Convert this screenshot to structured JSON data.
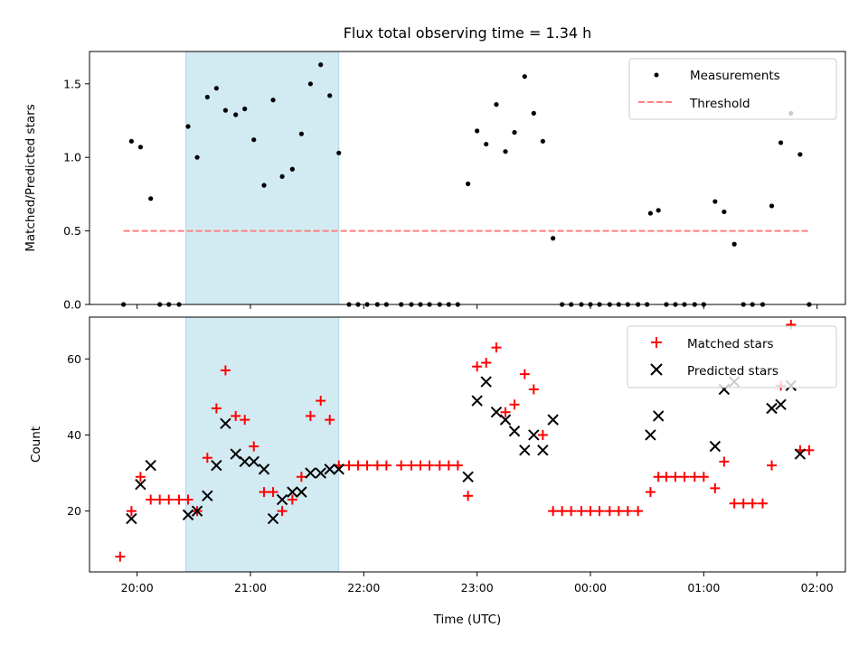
{
  "title": "Flux total observing time = 1.34 h",
  "colors": {
    "measurement": "#000000",
    "threshold": "#ff7f7f",
    "matched": "#ff0000",
    "predicted": "#000000",
    "highlight": "#add8e6"
  },
  "chart_data": [
    {
      "type": "scatter",
      "name": "ratio-panel",
      "ylabel": "Matched/Predicted stars",
      "xlabel": "",
      "xlim_hours": [
        19.58,
        26.25
      ],
      "ylim": [
        0,
        1.72
      ],
      "yticks": [
        0.0,
        0.5,
        1.0,
        1.5
      ],
      "ytick_labels": [
        "0.0",
        "0.5",
        "1.0",
        "1.5"
      ],
      "highlight_span_hours": [
        20.43,
        21.78
      ],
      "threshold": {
        "label": "Threshold",
        "y": 0.5,
        "x_hours": [
          19.88,
          25.93
        ]
      },
      "legend": {
        "placement": "top-right",
        "entries": [
          "Measurements",
          "Threshold"
        ]
      },
      "series": [
        {
          "name": "Measurements",
          "points": [
            [
              19.88,
              0.0
            ],
            [
              19.95,
              1.11
            ],
            [
              20.03,
              1.07
            ],
            [
              20.12,
              0.72
            ],
            [
              20.2,
              0.0
            ],
            [
              20.28,
              0.0
            ],
            [
              20.37,
              0.0
            ],
            [
              20.45,
              1.21
            ],
            [
              20.53,
              1.0
            ],
            [
              20.62,
              1.41
            ],
            [
              20.7,
              1.47
            ],
            [
              20.78,
              1.32
            ],
            [
              20.87,
              1.29
            ],
            [
              20.95,
              1.33
            ],
            [
              21.03,
              1.12
            ],
            [
              21.12,
              0.81
            ],
            [
              21.2,
              1.39
            ],
            [
              21.28,
              0.87
            ],
            [
              21.37,
              0.92
            ],
            [
              21.45,
              1.16
            ],
            [
              21.53,
              1.5
            ],
            [
              21.62,
              1.63
            ],
            [
              21.7,
              1.42
            ],
            [
              21.78,
              1.03
            ],
            [
              21.87,
              0.0
            ],
            [
              21.95,
              0.0
            ],
            [
              22.03,
              0.0
            ],
            [
              22.12,
              0.0
            ],
            [
              22.2,
              0.0
            ],
            [
              22.33,
              0.0
            ],
            [
              22.42,
              0.0
            ],
            [
              22.5,
              0.0
            ],
            [
              22.58,
              0.0
            ],
            [
              22.67,
              0.0
            ],
            [
              22.75,
              0.0
            ],
            [
              22.83,
              0.0
            ],
            [
              22.92,
              0.82
            ],
            [
              23.0,
              1.18
            ],
            [
              23.08,
              1.09
            ],
            [
              23.17,
              1.36
            ],
            [
              23.25,
              1.04
            ],
            [
              23.33,
              1.17
            ],
            [
              23.42,
              1.55
            ],
            [
              23.5,
              1.3
            ],
            [
              23.58,
              1.11
            ],
            [
              23.67,
              0.45
            ],
            [
              23.75,
              0.0
            ],
            [
              23.83,
              0.0
            ],
            [
              23.92,
              0.0
            ],
            [
              24.0,
              0.0
            ],
            [
              24.08,
              0.0
            ],
            [
              24.17,
              0.0
            ],
            [
              24.25,
              0.0
            ],
            [
              24.33,
              0.0
            ],
            [
              24.42,
              0.0
            ],
            [
              24.5,
              0.0
            ],
            [
              24.53,
              0.62
            ],
            [
              24.6,
              0.64
            ],
            [
              24.67,
              0.0
            ],
            [
              24.75,
              0.0
            ],
            [
              24.83,
              0.0
            ],
            [
              24.92,
              0.0
            ],
            [
              25.0,
              0.0
            ],
            [
              25.1,
              0.7
            ],
            [
              25.18,
              0.63
            ],
            [
              25.27,
              0.41
            ],
            [
              25.35,
              0.0
            ],
            [
              25.43,
              0.0
            ],
            [
              25.52,
              0.0
            ],
            [
              25.6,
              0.67
            ],
            [
              25.68,
              1.1
            ],
            [
              25.77,
              1.3
            ],
            [
              25.85,
              1.02
            ],
            [
              25.93,
              0.0
            ]
          ]
        }
      ]
    },
    {
      "type": "scatter",
      "name": "count-panel",
      "ylabel": "Count",
      "xlabel": "Time (UTC)",
      "xlim_hours": [
        19.58,
        26.25
      ],
      "ylim": [
        4,
        71
      ],
      "yticks": [
        20,
        40,
        60
      ],
      "ytick_labels": [
        "20",
        "40",
        "60"
      ],
      "xticks_hours": [
        20,
        21,
        22,
        23,
        24,
        25,
        26
      ],
      "xtick_labels": [
        "20:00",
        "21:00",
        "22:00",
        "23:00",
        "00:00",
        "01:00",
        "02:00"
      ],
      "highlight_span_hours": [
        20.43,
        21.78
      ],
      "legend": {
        "placement": "top-right",
        "entries": [
          "Matched stars",
          "Predicted stars"
        ]
      },
      "series": [
        {
          "name": "Matched stars",
          "points": [
            [
              19.85,
              8
            ],
            [
              19.95,
              20
            ],
            [
              20.03,
              29
            ],
            [
              20.12,
              23
            ],
            [
              20.2,
              23
            ],
            [
              20.28,
              23
            ],
            [
              20.37,
              23
            ],
            [
              20.45,
              23
            ],
            [
              20.53,
              20
            ],
            [
              20.62,
              34
            ],
            [
              20.7,
              47
            ],
            [
              20.78,
              57
            ],
            [
              20.87,
              45
            ],
            [
              20.95,
              44
            ],
            [
              21.03,
              37
            ],
            [
              21.12,
              25
            ],
            [
              21.2,
              25
            ],
            [
              21.28,
              20
            ],
            [
              21.37,
              23
            ],
            [
              21.45,
              29
            ],
            [
              21.53,
              45
            ],
            [
              21.62,
              49
            ],
            [
              21.7,
              44
            ],
            [
              21.78,
              32
            ],
            [
              21.87,
              32
            ],
            [
              21.95,
              32
            ],
            [
              22.03,
              32
            ],
            [
              22.12,
              32
            ],
            [
              22.2,
              32
            ],
            [
              22.33,
              32
            ],
            [
              22.42,
              32
            ],
            [
              22.5,
              32
            ],
            [
              22.58,
              32
            ],
            [
              22.67,
              32
            ],
            [
              22.75,
              32
            ],
            [
              22.83,
              32
            ],
            [
              22.92,
              24
            ],
            [
              23.0,
              58
            ],
            [
              23.08,
              59
            ],
            [
              23.17,
              63
            ],
            [
              23.25,
              46
            ],
            [
              23.33,
              48
            ],
            [
              23.42,
              56
            ],
            [
              23.5,
              52
            ],
            [
              23.58,
              40
            ],
            [
              23.67,
              20
            ],
            [
              23.75,
              20
            ],
            [
              23.83,
              20
            ],
            [
              23.92,
              20
            ],
            [
              24.0,
              20
            ],
            [
              24.08,
              20
            ],
            [
              24.17,
              20
            ],
            [
              24.25,
              20
            ],
            [
              24.33,
              20
            ],
            [
              24.42,
              20
            ],
            [
              24.53,
              25
            ],
            [
              24.6,
              29
            ],
            [
              24.67,
              29
            ],
            [
              24.75,
              29
            ],
            [
              24.83,
              29
            ],
            [
              24.92,
              29
            ],
            [
              25.0,
              29
            ],
            [
              25.1,
              26
            ],
            [
              25.18,
              33
            ],
            [
              25.27,
              22
            ],
            [
              25.35,
              22
            ],
            [
              25.43,
              22
            ],
            [
              25.52,
              22
            ],
            [
              25.6,
              32
            ],
            [
              25.68,
              53
            ],
            [
              25.77,
              69
            ],
            [
              25.85,
              36
            ],
            [
              25.93,
              36
            ]
          ]
        },
        {
          "name": "Predicted stars",
          "points": [
            [
              19.95,
              18
            ],
            [
              20.03,
              27
            ],
            [
              20.12,
              32
            ],
            [
              20.45,
              19
            ],
            [
              20.53,
              20
            ],
            [
              20.62,
              24
            ],
            [
              20.7,
              32
            ],
            [
              20.78,
              43
            ],
            [
              20.87,
              35
            ],
            [
              20.95,
              33
            ],
            [
              21.03,
              33
            ],
            [
              21.12,
              31
            ],
            [
              21.2,
              18
            ],
            [
              21.28,
              23
            ],
            [
              21.37,
              25
            ],
            [
              21.45,
              25
            ],
            [
              21.53,
              30
            ],
            [
              21.62,
              30
            ],
            [
              21.7,
              31
            ],
            [
              21.78,
              31
            ],
            [
              22.92,
              29
            ],
            [
              23.0,
              49
            ],
            [
              23.08,
              54
            ],
            [
              23.17,
              46
            ],
            [
              23.25,
              44
            ],
            [
              23.33,
              41
            ],
            [
              23.42,
              36
            ],
            [
              23.5,
              40
            ],
            [
              23.58,
              36
            ],
            [
              23.67,
              44
            ],
            [
              24.53,
              40
            ],
            [
              24.6,
              45
            ],
            [
              25.1,
              37
            ],
            [
              25.18,
              52
            ],
            [
              25.27,
              54
            ],
            [
              25.6,
              47
            ],
            [
              25.68,
              48
            ],
            [
              25.77,
              53
            ],
            [
              25.85,
              35
            ]
          ]
        }
      ]
    }
  ]
}
